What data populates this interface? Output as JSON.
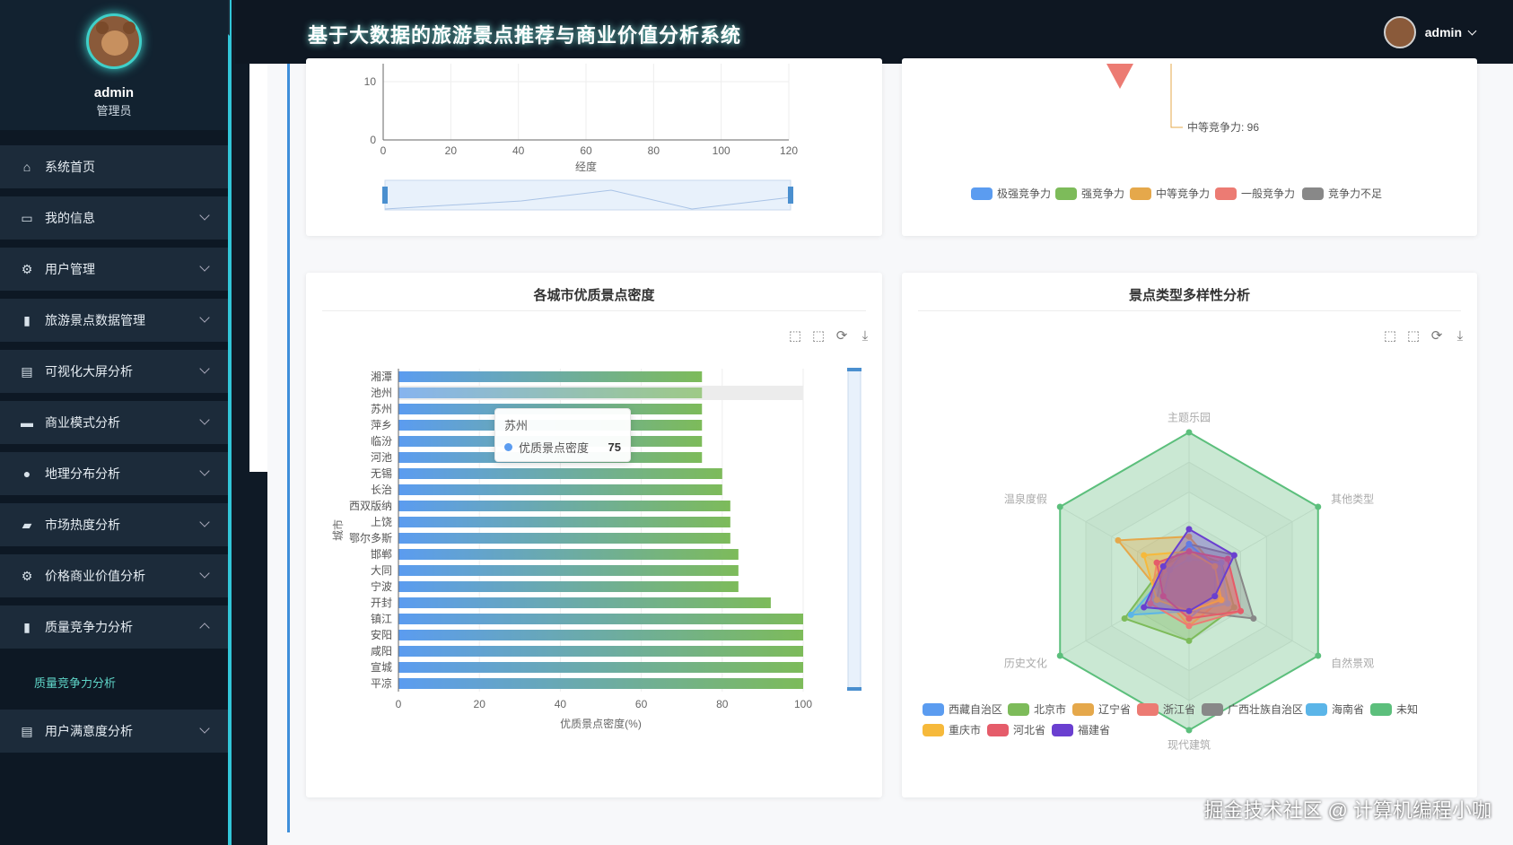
{
  "app": {
    "title": "基于大数据的旅游景点推荐与商业价值分析系统"
  },
  "profile": {
    "name": "admin",
    "role": "管理员"
  },
  "topbar": {
    "user": "admin"
  },
  "menu": [
    {
      "label": "系统首页",
      "icon": "home-icon",
      "expandable": false
    },
    {
      "label": "我的信息",
      "icon": "card-icon",
      "expandable": true
    },
    {
      "label": "用户管理",
      "icon": "gear-icon",
      "expandable": true
    },
    {
      "label": "旅游景点数据管理",
      "icon": "bar-chart-icon",
      "expandable": true
    },
    {
      "label": "可视化大屏分析",
      "icon": "clipboard-icon",
      "expandable": true
    },
    {
      "label": "商业模式分析",
      "icon": "monitor-icon",
      "expandable": true
    },
    {
      "label": "地理分布分析",
      "icon": "user-icon",
      "expandable": true
    },
    {
      "label": "市场热度分析",
      "icon": "wallet-icon",
      "expandable": true
    },
    {
      "label": "价格商业价值分析",
      "icon": "gear-icon",
      "expandable": true
    },
    {
      "label": "质量竞争力分析",
      "icon": "bar-chart-icon",
      "expandable": true,
      "open": true
    }
  ],
  "submenu": {
    "active": "质量竞争力分析"
  },
  "menu_last": {
    "label": "用户满意度分析",
    "icon": "clipboard-icon"
  },
  "scatter_panel": {
    "xlabel": "经度",
    "ytick_visible": [
      "10",
      "0"
    ],
    "xticks": [
      "0",
      "20",
      "40",
      "60",
      "80",
      "100",
      "120"
    ]
  },
  "pie_panel": {
    "label": "中等竞争力: 96",
    "legend": [
      {
        "name": "极强竞争力",
        "color": "#5b9cf0"
      },
      {
        "name": "强竞争力",
        "color": "#7dbb5a"
      },
      {
        "name": "中等竞争力",
        "color": "#e5a84b"
      },
      {
        "name": "一般竞争力",
        "color": "#ec7b73"
      },
      {
        "name": "竞争力不足",
        "color": "#888888"
      }
    ]
  },
  "bar_panel": {
    "tooltip": {
      "city": "苏州",
      "series": "优质景点密度",
      "value": "75"
    },
    "axis_name": "城市"
  },
  "radar_panel": {
    "indicators": [
      "主题乐园",
      "其他类型",
      "自然景观",
      "现代建筑",
      "历史文化",
      "温泉度假"
    ]
  },
  "chart_data": [
    {
      "type": "bar",
      "title": "各城市优质景点密度",
      "xlabel": "优质景点密度(%)",
      "ylabel": "城市",
      "xlim": [
        0,
        100
      ],
      "xticks": [
        "0",
        "20",
        "40",
        "60",
        "80",
        "100"
      ],
      "categories": [
        "湘潭",
        "池州",
        "苏州",
        "萍乡",
        "临汾",
        "河池",
        "无锡",
        "长治",
        "西双版纳",
        "上饶",
        "鄂尔多斯",
        "邯郸",
        "大同",
        "宁波",
        "开封",
        "镇江",
        "安阳",
        "咸阳",
        "宣城",
        "平凉"
      ],
      "values": [
        75,
        75,
        75,
        75,
        75,
        75,
        80,
        80,
        82,
        82,
        82,
        84,
        84,
        84,
        92,
        100,
        100,
        100,
        100,
        100
      ]
    },
    {
      "type": "radar",
      "title": "景点类型多样性分析",
      "indicators": [
        "主题乐园",
        "其他类型",
        "自然景观",
        "现代建筑",
        "历史文化",
        "温泉度假"
      ],
      "series": [
        {
          "name": "西藏自治区",
          "color": "#5b9cf0",
          "values": [
            0.25,
            0.2,
            0.2,
            0.25,
            0.2,
            0.15
          ]
        },
        {
          "name": "北京市",
          "color": "#7dbb5a",
          "values": [
            0.2,
            0.25,
            0.35,
            0.4,
            0.5,
            0.2
          ]
        },
        {
          "name": "辽宁省",
          "color": "#e5a84b",
          "values": [
            0.3,
            0.2,
            0.25,
            0.3,
            0.2,
            0.55
          ]
        },
        {
          "name": "浙江省",
          "color": "#ec7b73",
          "values": [
            0.2,
            0.3,
            0.4,
            0.3,
            0.3,
            0.25
          ]
        },
        {
          "name": "广西壮族自治区",
          "color": "#888888",
          "values": [
            0.25,
            0.35,
            0.5,
            0.2,
            0.25,
            0.2
          ]
        },
        {
          "name": "海南省",
          "color": "#5bb5e8",
          "values": [
            0.15,
            0.25,
            0.3,
            0.2,
            0.45,
            0.15
          ]
        },
        {
          "name": "未知",
          "color": "#5cbf7c",
          "values": [
            1.0,
            1.0,
            1.0,
            1.0,
            1.0,
            1.0
          ]
        },
        {
          "name": "重庆市",
          "color": "#f6b93b",
          "values": [
            0.2,
            0.2,
            0.25,
            0.2,
            0.25,
            0.35
          ]
        },
        {
          "name": "河北省",
          "color": "#e55c6a",
          "values": [
            0.2,
            0.3,
            0.4,
            0.25,
            0.2,
            0.25
          ]
        },
        {
          "name": "福建省",
          "color": "#6a3fd0",
          "values": [
            0.35,
            0.35,
            0.2,
            0.2,
            0.35,
            0.2
          ]
        }
      ]
    }
  ],
  "watermark": "掘金技术社区 @ 计算机编程小咖"
}
